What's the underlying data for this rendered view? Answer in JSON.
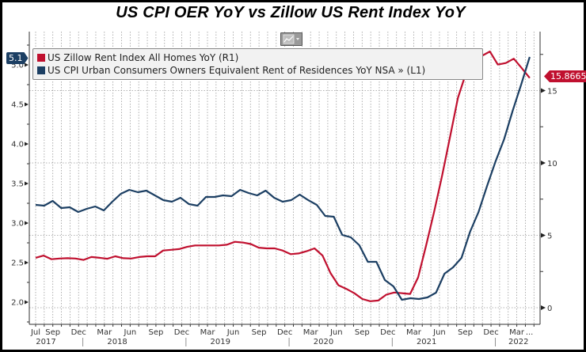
{
  "colors": {
    "zillow": "#c0102f",
    "cpi": "#1c3f63",
    "legend_bg": "#f2f2f2"
  },
  "toolbar": {
    "chart_type_icon": "line-chart-icon",
    "dropdown_icon": "chevron-down-icon"
  },
  "tags": {
    "left_last_value": "5.1",
    "right_last_value": "15.8665"
  },
  "chart_data": {
    "type": "line",
    "title": "US CPI OER YoY vs Zillow US Rent Index YoY",
    "legend_placement": "top-left",
    "grid": true,
    "x_start": "2017-07",
    "x_end": "2022-04",
    "x_month_ticks": [
      "Jul",
      "Sep",
      "Dec",
      "Mar",
      "Jun",
      "Sep",
      "Dec",
      "Mar",
      "Jun",
      "Sep",
      "Dec",
      "Mar",
      "Jun",
      "Sep",
      "Dec",
      "Mar",
      "Jun",
      "Sep",
      "Dec",
      "Mar",
      "..."
    ],
    "x_year_labels": [
      "2017",
      "2018",
      "2019",
      "2020",
      "2021",
      "2022"
    ],
    "left_axis": {
      "ylim": [
        1.7,
        5.35
      ],
      "ticks": [
        "2.0",
        "2.5",
        "3.0",
        "3.5",
        "4.0",
        "4.5",
        "5.0"
      ]
    },
    "right_axis": {
      "ylim": [
        -1.2,
        18.7
      ],
      "ticks": [
        "0",
        "5",
        "10",
        "15"
      ]
    },
    "series": [
      {
        "name": "US Zillow Rent Index All Homes YoY (R1)",
        "axis": "right",
        "values": [
          3.45,
          3.6,
          3.35,
          3.4,
          3.42,
          3.4,
          3.3,
          3.5,
          3.45,
          3.38,
          3.55,
          3.42,
          3.4,
          3.5,
          3.55,
          3.55,
          3.95,
          4.0,
          4.05,
          4.2,
          4.3,
          4.3,
          4.3,
          4.3,
          4.35,
          4.55,
          4.5,
          4.4,
          4.15,
          4.1,
          4.1,
          3.95,
          3.7,
          3.75,
          3.9,
          4.1,
          3.6,
          2.4,
          1.55,
          1.3,
          1.0,
          0.6,
          0.45,
          0.5,
          0.9,
          1.05,
          1.0,
          0.95,
          2.1,
          4.3,
          6.6,
          9.1,
          11.8,
          14.5,
          16.2,
          17.1,
          17.4,
          17.7,
          16.8,
          16.9,
          17.2,
          16.55,
          15.8665
        ]
      },
      {
        "name": "US CPI Urban Consumers Owners Equivalent Rent of Residences YoY NSA » (L1)",
        "axis": "left",
        "values": [
          3.23,
          3.22,
          3.28,
          3.19,
          3.2,
          3.14,
          3.18,
          3.21,
          3.16,
          3.27,
          3.37,
          3.42,
          3.39,
          3.41,
          3.35,
          3.29,
          3.27,
          3.32,
          3.24,
          3.22,
          3.33,
          3.33,
          3.35,
          3.34,
          3.42,
          3.38,
          3.35,
          3.41,
          3.32,
          3.27,
          3.29,
          3.36,
          3.29,
          3.23,
          3.09,
          3.08,
          2.85,
          2.82,
          2.72,
          2.51,
          2.51,
          2.28,
          2.2,
          2.03,
          2.05,
          2.04,
          2.06,
          2.12,
          2.36,
          2.44,
          2.56,
          2.89,
          3.14,
          3.47,
          3.78,
          4.06,
          4.42,
          4.75,
          5.1
        ]
      }
    ]
  }
}
